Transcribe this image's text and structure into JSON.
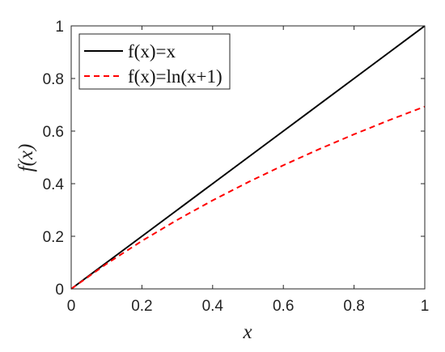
{
  "chart_data": {
    "type": "line",
    "title": "",
    "xlabel": "x",
    "ylabel": "f(x)",
    "xlim": [
      0,
      1
    ],
    "ylim": [
      0,
      1
    ],
    "x_ticks": [
      0,
      0.2,
      0.4,
      0.6,
      0.8,
      1
    ],
    "y_ticks": [
      0,
      0.2,
      0.4,
      0.6,
      0.8,
      1
    ],
    "x_tick_labels": [
      "0",
      "0.2",
      "0.4",
      "0.6",
      "0.8",
      "1"
    ],
    "y_tick_labels": [
      "0",
      "0.2",
      "0.4",
      "0.6",
      "0.8",
      "1"
    ],
    "grid": false,
    "legend_position": "top-left",
    "x": [
      0,
      0.1,
      0.2,
      0.3,
      0.4,
      0.5,
      0.6,
      0.7,
      0.8,
      0.9,
      1
    ],
    "series": [
      {
        "name": "f(x)=x",
        "legend_label": "f(x)=x",
        "color": "#000000",
        "style": "solid",
        "values": [
          0,
          0.1,
          0.2,
          0.3,
          0.4,
          0.5,
          0.6,
          0.7,
          0.8,
          0.9,
          1
        ]
      },
      {
        "name": "f(x)=ln(x+1)",
        "legend_label": "f(x)=ln(x+1)",
        "color": "#ff0000",
        "style": "dashed",
        "values": [
          0,
          0.0953,
          0.1823,
          0.2624,
          0.3365,
          0.4055,
          0.47,
          0.5306,
          0.5878,
          0.6419,
          0.6931
        ]
      }
    ]
  }
}
